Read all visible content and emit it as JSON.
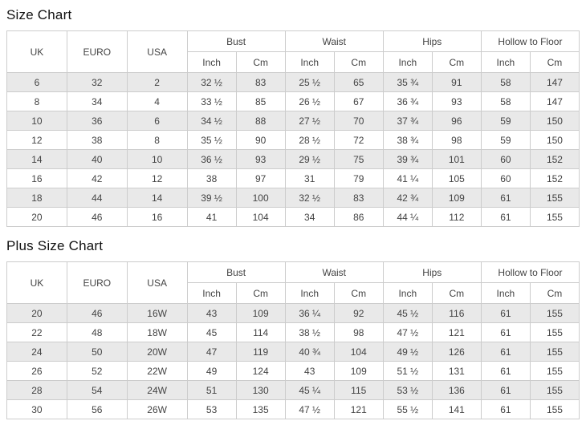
{
  "colors": {
    "row_stripe": "#e9e9e9",
    "border": "#cccccc",
    "text": "#444444",
    "title": "#111111",
    "background": "#ffffff"
  },
  "size_chart": {
    "title": "Size Chart",
    "base_headers": [
      "UK",
      "EURO",
      "USA"
    ],
    "group_headers": [
      "Bust",
      "Waist",
      "Hips",
      "Hollow to Floor"
    ],
    "unit_headers": [
      "Inch",
      "Cm"
    ],
    "rows": [
      [
        "6",
        "32",
        "2",
        "32 ½",
        "83",
        "25 ½",
        "65",
        "35 ¾",
        "91",
        "58",
        "147"
      ],
      [
        "8",
        "34",
        "4",
        "33 ½",
        "85",
        "26 ½",
        "67",
        "36 ¾",
        "93",
        "58",
        "147"
      ],
      [
        "10",
        "36",
        "6",
        "34 ½",
        "88",
        "27 ½",
        "70",
        "37 ¾",
        "96",
        "59",
        "150"
      ],
      [
        "12",
        "38",
        "8",
        "35 ½",
        "90",
        "28 ½",
        "72",
        "38 ¾",
        "98",
        "59",
        "150"
      ],
      [
        "14",
        "40",
        "10",
        "36 ½",
        "93",
        "29 ½",
        "75",
        "39 ¾",
        "101",
        "60",
        "152"
      ],
      [
        "16",
        "42",
        "12",
        "38",
        "97",
        "31",
        "79",
        "41 ¼",
        "105",
        "60",
        "152"
      ],
      [
        "18",
        "44",
        "14",
        "39 ½",
        "100",
        "32 ½",
        "83",
        "42 ¾",
        "109",
        "61",
        "155"
      ],
      [
        "20",
        "46",
        "16",
        "41",
        "104",
        "34",
        "86",
        "44 ¼",
        "112",
        "61",
        "155"
      ]
    ]
  },
  "plus_size_chart": {
    "title": "Plus Size Chart",
    "base_headers": [
      "UK",
      "EURO",
      "USA"
    ],
    "group_headers": [
      "Bust",
      "Waist",
      "Hips",
      "Hollow to Floor"
    ],
    "unit_headers": [
      "Inch",
      "Cm"
    ],
    "rows": [
      [
        "20",
        "46",
        "16W",
        "43",
        "109",
        "36 ¼",
        "92",
        "45 ½",
        "116",
        "61",
        "155"
      ],
      [
        "22",
        "48",
        "18W",
        "45",
        "114",
        "38 ½",
        "98",
        "47 ½",
        "121",
        "61",
        "155"
      ],
      [
        "24",
        "50",
        "20W",
        "47",
        "119",
        "40 ¾",
        "104",
        "49 ½",
        "126",
        "61",
        "155"
      ],
      [
        "26",
        "52",
        "22W",
        "49",
        "124",
        "43",
        "109",
        "51 ½",
        "131",
        "61",
        "155"
      ],
      [
        "28",
        "54",
        "24W",
        "51",
        "130",
        "45 ¼",
        "115",
        "53 ½",
        "136",
        "61",
        "155"
      ],
      [
        "30",
        "56",
        "26W",
        "53",
        "135",
        "47 ½",
        "121",
        "55 ½",
        "141",
        "61",
        "155"
      ]
    ]
  }
}
